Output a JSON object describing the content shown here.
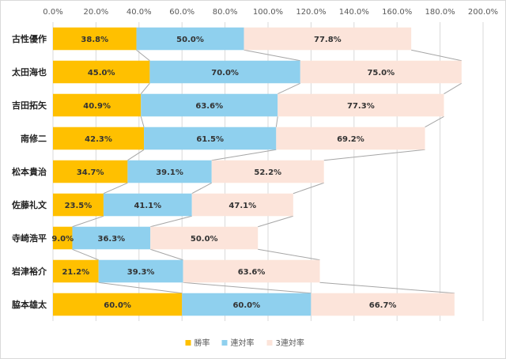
{
  "chart_data": {
    "type": "bar",
    "orientation": "horizontal",
    "stacked": true,
    "xlim": [
      0,
      200
    ],
    "x_ticks": [
      "0.0%",
      "20.0%",
      "40.0%",
      "60.0%",
      "80.0%",
      "100.0%",
      "120.0%",
      "140.0%",
      "160.0%",
      "180.0%",
      "200.0%"
    ],
    "categories": [
      "古性優作",
      "太田海也",
      "吉田拓矢",
      "南修二",
      "松本貴治",
      "佐藤礼文",
      "寺崎浩平",
      "岩津裕介",
      "脇本雄太"
    ],
    "series": [
      {
        "name": "勝率",
        "color": "#FFC000",
        "values": [
          38.8,
          45.0,
          40.9,
          42.3,
          34.7,
          23.5,
          9.0,
          21.2,
          60.0
        ],
        "labels": [
          "38.8%",
          "45.0%",
          "40.9%",
          "42.3%",
          "34.7%",
          "23.5%",
          "9.0%",
          "21.2%",
          "60.0%"
        ]
      },
      {
        "name": "連対率",
        "color": "#8FD0EE",
        "values": [
          50.0,
          70.0,
          63.6,
          61.5,
          39.1,
          41.1,
          36.3,
          39.3,
          60.0
        ],
        "labels": [
          "50.0%",
          "70.0%",
          "63.6%",
          "61.5%",
          "39.1%",
          "41.1%",
          "36.3%",
          "39.3%",
          "60.0%"
        ]
      },
      {
        "name": "3連対率",
        "color": "#FCE4DA",
        "values": [
          77.8,
          75.0,
          77.3,
          69.2,
          52.2,
          47.1,
          50.0,
          63.6,
          66.7
        ],
        "labels": [
          "77.8%",
          "75.0%",
          "77.3%",
          "69.2%",
          "52.2%",
          "47.1%",
          "50.0%",
          "63.6%",
          "66.7%"
        ]
      }
    ],
    "grid": true,
    "series_lines": true,
    "legend_position": "bottom"
  }
}
